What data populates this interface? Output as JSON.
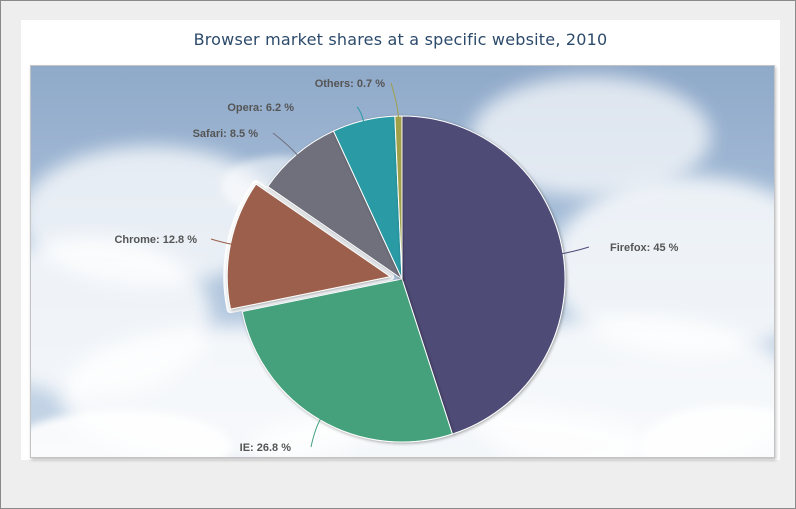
{
  "chart_data": {
    "type": "pie",
    "title": "Browser market shares at a specific website, 2010",
    "slices": [
      {
        "name": "Firefox",
        "value": 45.0,
        "label": "Firefox: 45 %",
        "color": "#4f4b77"
      },
      {
        "name": "IE",
        "value": 26.8,
        "label": "IE: 26.8 %",
        "color": "#44a07c"
      },
      {
        "name": "Chrome",
        "value": 12.8,
        "label": "Chrome: 12.8 %",
        "color": "#9b5f4b",
        "sliced": true
      },
      {
        "name": "Safari",
        "value": 8.5,
        "label": "Safari: 8.5 %",
        "color": "#70707c"
      },
      {
        "name": "Opera",
        "value": 6.2,
        "label": "Opera: 6.2 %",
        "color": "#2a9aa4"
      },
      {
        "name": "Others",
        "value": 0.7,
        "label": "Others: 0.7 %",
        "color": "#a0a04a"
      }
    ],
    "start_angle": "12 o'clock, clockwise",
    "background": "sky with clouds"
  }
}
